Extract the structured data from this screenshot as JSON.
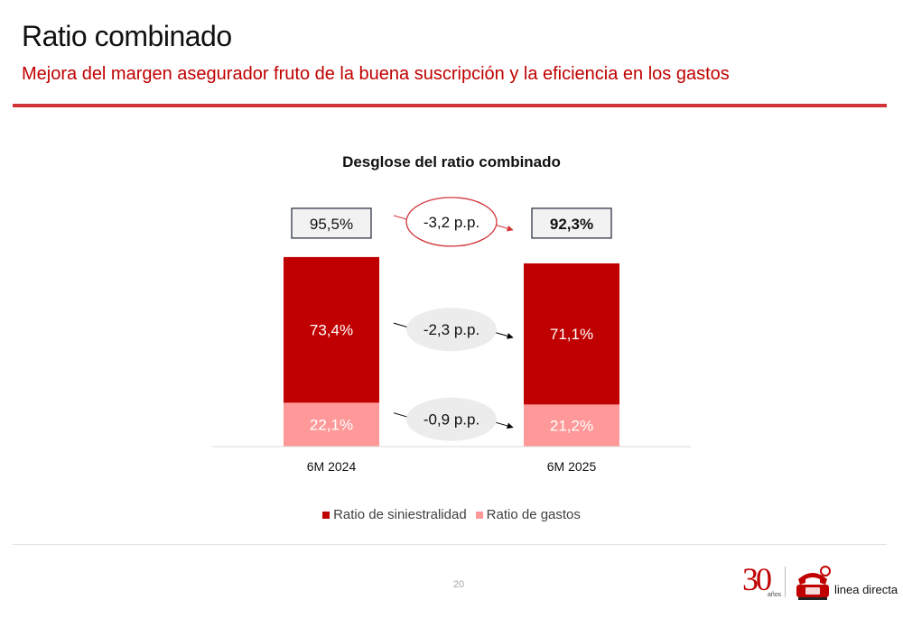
{
  "header": {
    "title": "Ratio combinado",
    "subtitle": "Mejora del margen asegurador fruto de la buena suscripción y la eficiencia en los gastos"
  },
  "footer": {
    "page_number": "20",
    "logo_number": "30",
    "logo_years": "años",
    "logo_brand": "linea directa"
  },
  "colors": {
    "accent": "#c00000",
    "siniestralidad": "#c00000",
    "gastos": "#ff9999",
    "header_rule": "#d13438",
    "bubble_gray": "#ececec"
  },
  "chart_data": {
    "type": "bar",
    "stacked": true,
    "title": "Desglose del ratio combinado",
    "categories": [
      "6M 2024",
      "6M 2025"
    ],
    "series": [
      {
        "name": "Ratio de gastos",
        "values": [
          22.1,
          21.2
        ],
        "labels": [
          "22,1%",
          "21,2%"
        ],
        "color": "#ff9999"
      },
      {
        "name": "Ratio de siniestralidad",
        "values": [
          73.4,
          71.1
        ],
        "labels": [
          "73,4%",
          "71,1%"
        ],
        "color": "#c00000"
      }
    ],
    "totals": {
      "values": [
        95.5,
        92.3
      ],
      "labels": [
        "95,5%",
        "92,3%"
      ]
    },
    "changes": {
      "total": "-3,2 p.p.",
      "siniestralidad": "-2,3 p.p.",
      "gastos": "-0,9 p.p."
    },
    "legend": [
      "Ratio de siniestralidad",
      "Ratio de gastos"
    ],
    "legend_position": "bottom",
    "ylim": [
      0,
      100
    ],
    "grid": false
  }
}
